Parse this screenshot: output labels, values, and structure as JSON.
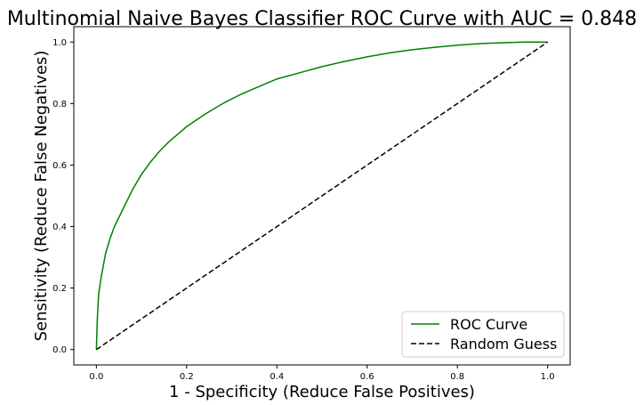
{
  "chart_data": {
    "type": "line",
    "title": "Multinomial Naive Bayes Classifier ROC Curve with AUC = 0.848",
    "xlabel": "1 - Specificity (Reduce False Positives)",
    "ylabel": "Sensitivity (Reduce False Negatives)",
    "xlim": [
      -0.05,
      1.05
    ],
    "ylim": [
      -0.05,
      1.05
    ],
    "xticks": [
      "0.0",
      "0.2",
      "0.4",
      "0.6",
      "0.8",
      "1.0"
    ],
    "yticks": [
      "0.0",
      "0.2",
      "0.4",
      "0.6",
      "0.8",
      "1.0"
    ],
    "grid": false,
    "legend_position": "lower-right",
    "series": [
      {
        "name": "ROC Curve",
        "color": "#008000",
        "style": "solid",
        "x": [
          0.0,
          0.002,
          0.005,
          0.01,
          0.015,
          0.02,
          0.03,
          0.04,
          0.05,
          0.06,
          0.07,
          0.08,
          0.1,
          0.12,
          0.14,
          0.16,
          0.18,
          0.2,
          0.24,
          0.28,
          0.32,
          0.36,
          0.4,
          0.45,
          0.5,
          0.55,
          0.6,
          0.65,
          0.7,
          0.75,
          0.8,
          0.85,
          0.9,
          0.95,
          1.0
        ],
        "y": [
          0.0,
          0.1,
          0.18,
          0.23,
          0.27,
          0.31,
          0.36,
          0.4,
          0.43,
          0.46,
          0.49,
          0.52,
          0.57,
          0.61,
          0.645,
          0.675,
          0.7,
          0.725,
          0.765,
          0.8,
          0.83,
          0.855,
          0.88,
          0.9,
          0.92,
          0.937,
          0.952,
          0.965,
          0.975,
          0.983,
          0.99,
          0.995,
          0.998,
          1.0,
          1.0
        ]
      },
      {
        "name": "Random Guess",
        "color": "#000000",
        "style": "dashed",
        "x": [
          0.0,
          1.0
        ],
        "y": [
          0.0,
          1.0
        ]
      }
    ]
  }
}
